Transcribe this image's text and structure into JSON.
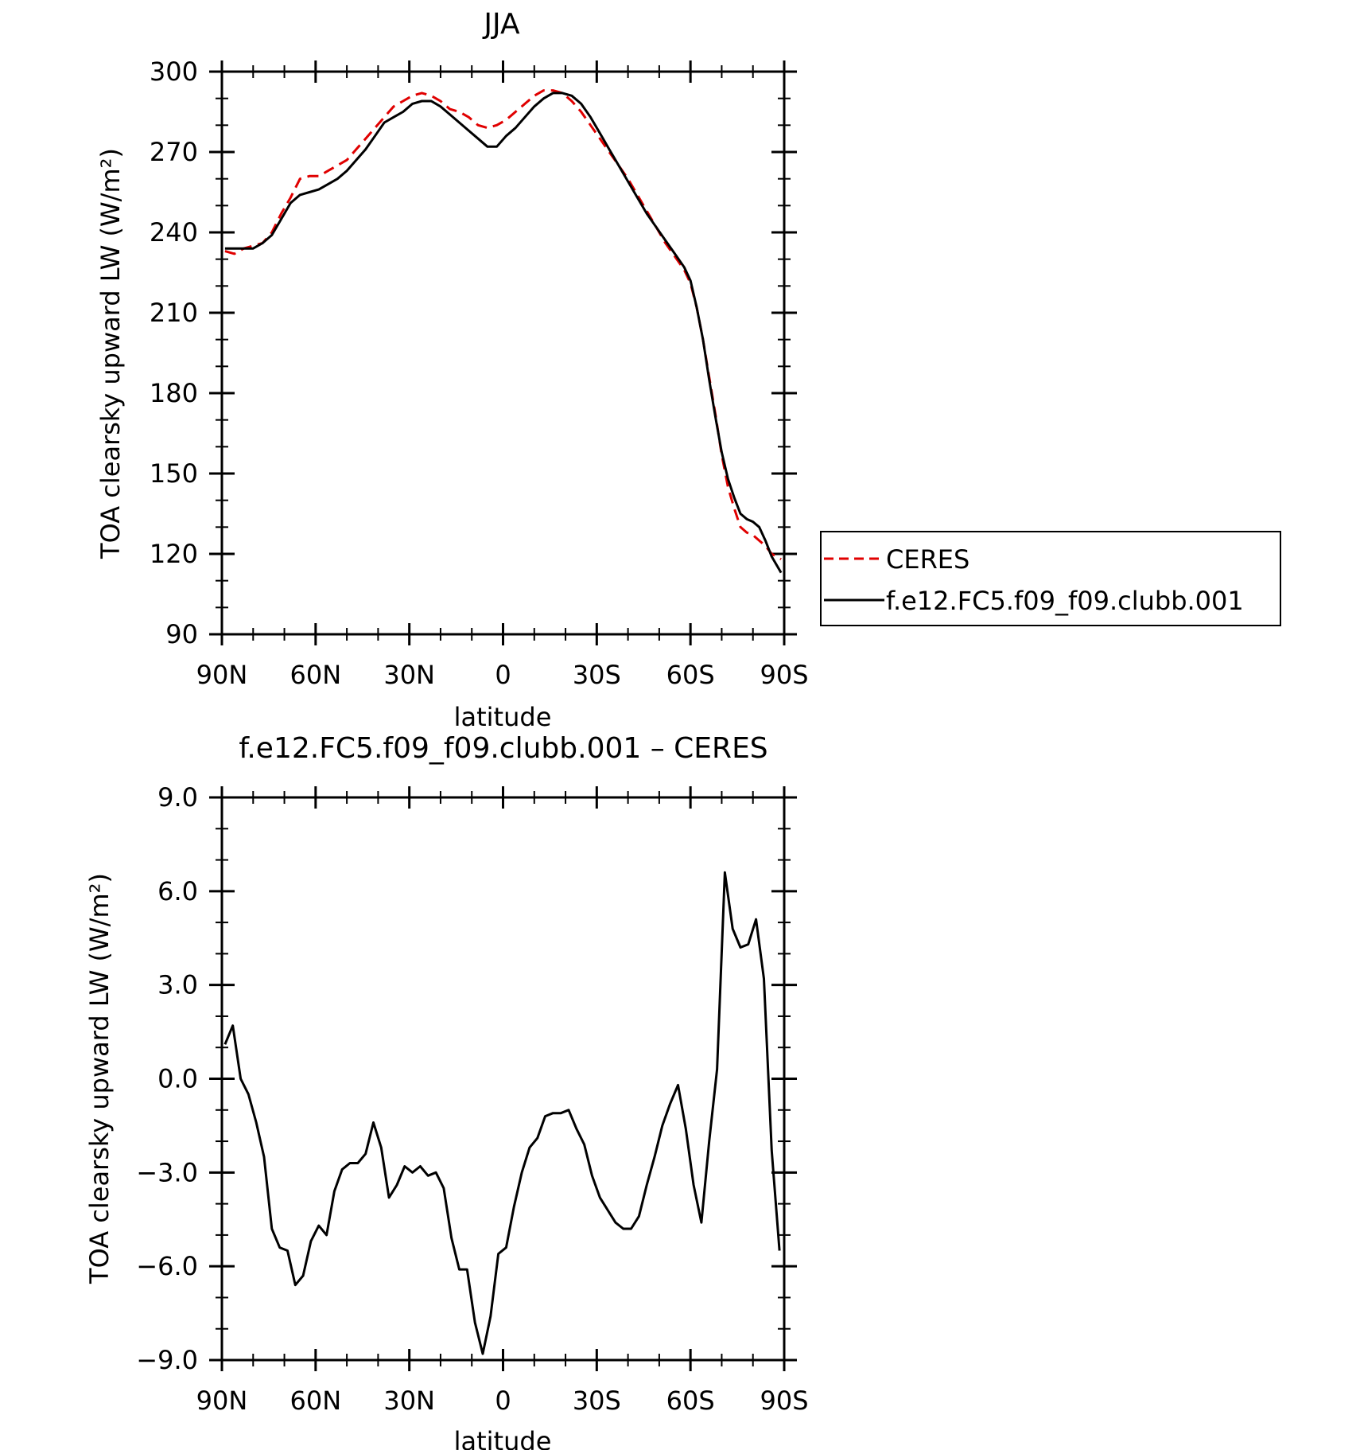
{
  "chart_data": [
    {
      "type": "line",
      "title": "JJA",
      "xlabel": "latitude",
      "ylabel": "TOA clearsky upward LW (W/m²)",
      "xlim": [
        90,
        -90
      ],
      "ylim": [
        90,
        300
      ],
      "x_ticks": [
        90,
        60,
        30,
        0,
        -30,
        -60,
        -90
      ],
      "x_tick_labels": [
        "90N",
        "60N",
        "30N",
        "0",
        "30S",
        "60S",
        "90S"
      ],
      "y_ticks": [
        90,
        120,
        150,
        180,
        210,
        240,
        270,
        300
      ],
      "y_tick_labels": [
        "90",
        "120",
        "150",
        "180",
        "210",
        "240",
        "270",
        "300"
      ],
      "legend": {
        "position": "right"
      },
      "series": [
        {
          "name": "CERES",
          "color": "#e00000",
          "dash": "dashed",
          "x": [
            89,
            86,
            83,
            80,
            77,
            74,
            71,
            68,
            65,
            62,
            59,
            56,
            53,
            50,
            47,
            44,
            41,
            38,
            35,
            32,
            29,
            26,
            23,
            20,
            17,
            14,
            11,
            8,
            5,
            2,
            -1,
            -4,
            -7,
            -10,
            -13,
            -16,
            -19,
            -22,
            -25,
            -28,
            -31,
            -34,
            -37,
            -40,
            -43,
            -46,
            -49,
            -52,
            -55,
            -58,
            -60,
            -62,
            -64,
            -66,
            -68,
            -70,
            -72,
            -74,
            -76,
            -78,
            -80,
            -82,
            -84,
            -86,
            -89
          ],
          "y": [
            233,
            232,
            234,
            235,
            236,
            240,
            247,
            253,
            260,
            261,
            261,
            263,
            265,
            267,
            271,
            275,
            279,
            283,
            287,
            289,
            291,
            292,
            291,
            289,
            286,
            285,
            283,
            280,
            279,
            280,
            282,
            285,
            288,
            291,
            293,
            293,
            292,
            289,
            285,
            280,
            275,
            270,
            265,
            260,
            254,
            248,
            242,
            236,
            231,
            226,
            221,
            212,
            200,
            186,
            172,
            157,
            145,
            137,
            130,
            128,
            127,
            125,
            123,
            120,
            118
          ]
        },
        {
          "name": "f.e12.FC5.f09_f09.clubb.001",
          "color": "#000000",
          "dash": "solid",
          "x": [
            89,
            86,
            83,
            80,
            77,
            74,
            71,
            68,
            65,
            62,
            59,
            56,
            53,
            50,
            47,
            44,
            41,
            38,
            35,
            32,
            29,
            26,
            23,
            20,
            17,
            14,
            11,
            8,
            5,
            2,
            -1,
            -4,
            -7,
            -10,
            -13,
            -16,
            -19,
            -22,
            -25,
            -28,
            -31,
            -34,
            -37,
            -40,
            -43,
            -46,
            -49,
            -52,
            -55,
            -58,
            -60,
            -62,
            -64,
            -66,
            -68,
            -70,
            -72,
            -74,
            -76,
            -78,
            -80,
            -82,
            -84,
            -86,
            -89
          ],
          "y": [
            234,
            234,
            234,
            234,
            236,
            239,
            245,
            251,
            254,
            255,
            256,
            258,
            260,
            263,
            267,
            271,
            276,
            281,
            283,
            285,
            288,
            289,
            289,
            287,
            284,
            281,
            278,
            275,
            272,
            272,
            276,
            279,
            283,
            287,
            290,
            292,
            292,
            291,
            288,
            283,
            277,
            271,
            265,
            259,
            253,
            247,
            242,
            237,
            232,
            227,
            222,
            212,
            200,
            185,
            171,
            158,
            148,
            141,
            135,
            133,
            132,
            130,
            125,
            119,
            113
          ]
        }
      ]
    },
    {
      "type": "line",
      "title": "f.e12.FC5.f09_f09.clubb.001 – CERES",
      "xlabel": "latitude",
      "ylabel": "TOA clearsky upward LW (W/m²)",
      "xlim": [
        90,
        -90
      ],
      "ylim": [
        -9,
        9
      ],
      "x_ticks": [
        90,
        60,
        30,
        0,
        -30,
        -60,
        -90
      ],
      "x_tick_labels": [
        "90N",
        "60N",
        "30N",
        "0",
        "30S",
        "60S",
        "90S"
      ],
      "y_ticks": [
        -9,
        -6,
        -3,
        0,
        3,
        6,
        9
      ],
      "y_tick_labels": [
        "−9.0",
        "−6.0",
        "−3.0",
        "0.0",
        "3.0",
        "6.0",
        "9.0"
      ],
      "series": [
        {
          "color": "#000000",
          "dash": "solid",
          "x": [
            89,
            86.5,
            84,
            81.5,
            79,
            76.5,
            74,
            71.5,
            69,
            66.5,
            64,
            61.5,
            59,
            56.5,
            54,
            51.5,
            49,
            46.5,
            44,
            41.5,
            39,
            36.5,
            34,
            31.5,
            29,
            26.5,
            24,
            21.5,
            19,
            16.5,
            14,
            11.5,
            9,
            6.5,
            4,
            1.5,
            -1,
            -3.5,
            -6,
            -8.5,
            -11,
            -13.5,
            -16,
            -18.5,
            -21,
            -23.5,
            -26,
            -28.5,
            -31,
            -33.5,
            -36,
            -38.5,
            -41,
            -43.5,
            -46,
            -48.5,
            -51,
            -53.5,
            -56,
            -58.5,
            -61,
            -63.5,
            -66,
            -68.5,
            -71,
            -73.5,
            -76,
            -78.5,
            -81,
            -83.5,
            -86,
            -88.5
          ],
          "y": [
            1.1,
            1.7,
            0.0,
            -0.5,
            -1.4,
            -2.5,
            -4.8,
            -5.4,
            -5.5,
            -6.6,
            -6.3,
            -5.2,
            -4.7,
            -5.0,
            -3.6,
            -2.9,
            -2.7,
            -2.7,
            -2.4,
            -1.4,
            -2.2,
            -3.8,
            -3.4,
            -2.8,
            -3.0,
            -2.8,
            -3.1,
            -3.0,
            -3.5,
            -5.1,
            -6.1,
            -6.1,
            -7.8,
            -8.8,
            -7.6,
            -5.6,
            -5.4,
            -4.1,
            -3.0,
            -2.2,
            -1.9,
            -1.2,
            -1.1,
            -1.1,
            -1.0,
            -1.6,
            -2.1,
            -3.1,
            -3.8,
            -4.2,
            -4.6,
            -4.8,
            -4.8,
            -4.4,
            -3.4,
            -2.5,
            -1.5,
            -0.8,
            -0.2,
            -1.6,
            -3.4,
            -4.6,
            -2.0,
            0.3,
            6.6,
            4.8,
            4.2,
            4.3,
            5.1,
            3.2,
            -2.3,
            -5.5
          ]
        }
      ]
    }
  ]
}
